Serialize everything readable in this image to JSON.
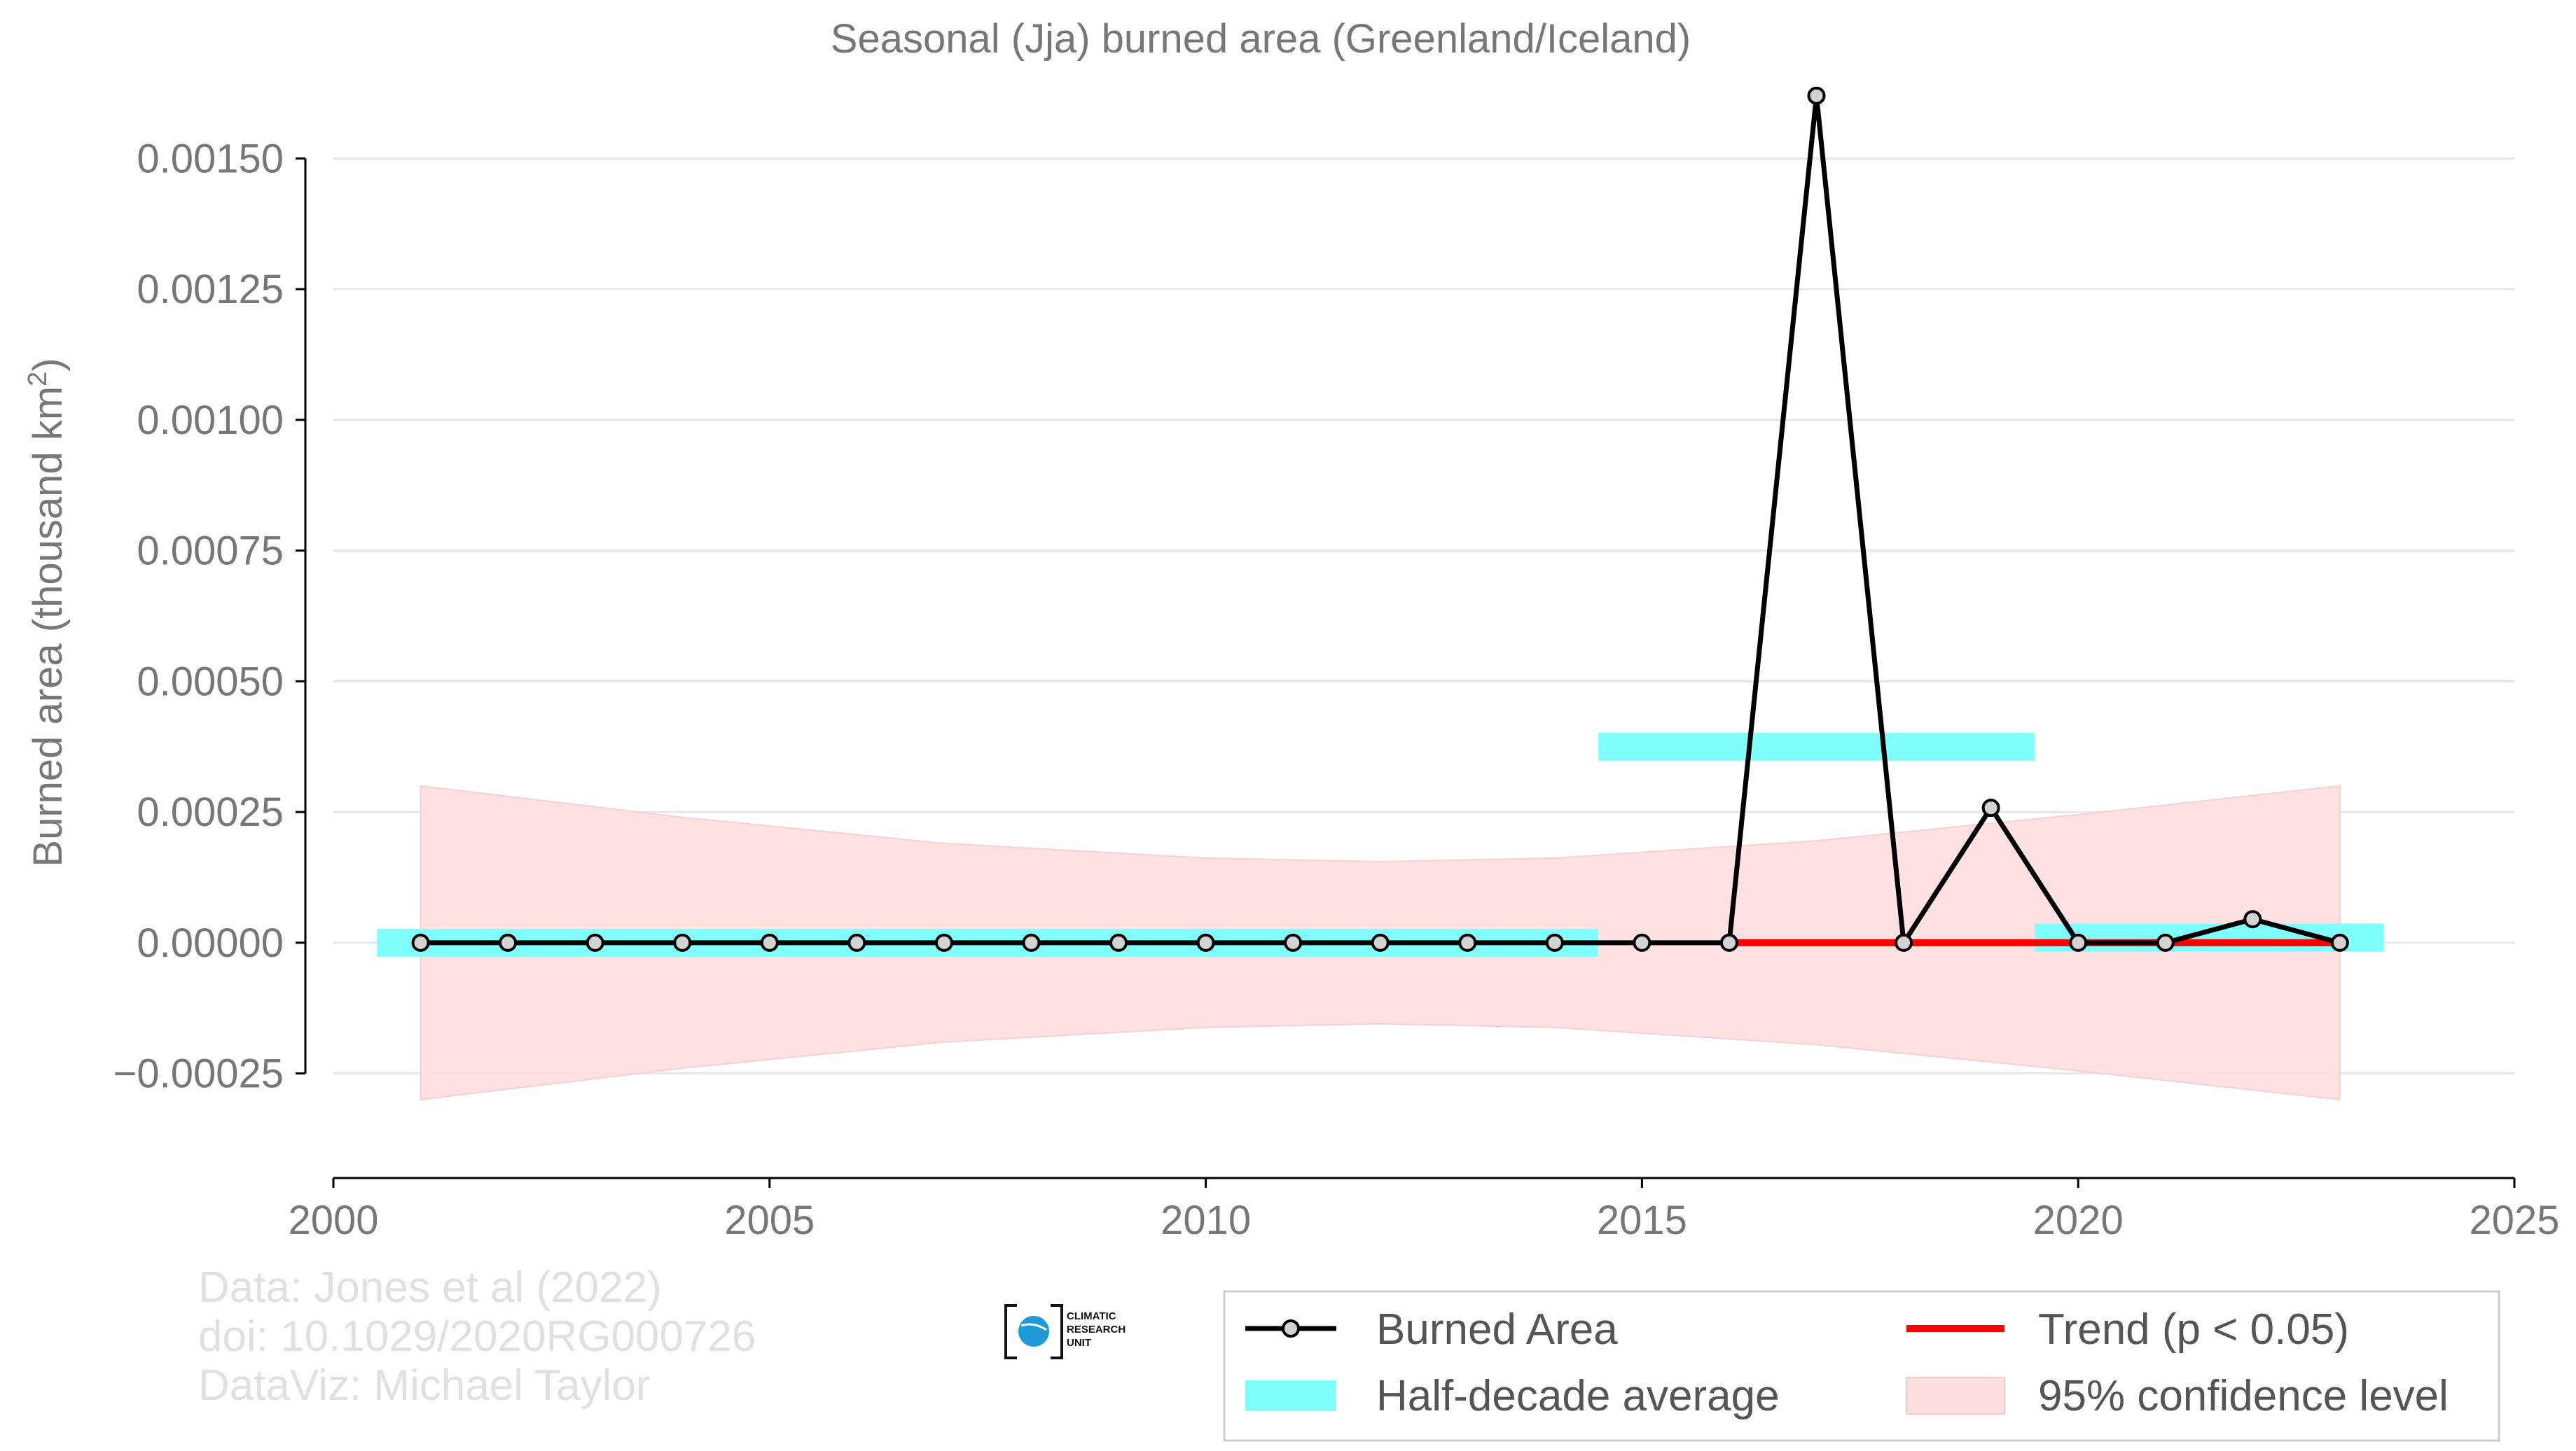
{
  "chart_data": {
    "type": "line",
    "title": "Seasonal (Jja) burned area (Greenland/Iceland)",
    "ylabel_main": "Burned area (thousand km",
    "ylabel_sup": "2",
    "ylabel_end": ")",
    "xlabel": "",
    "xlim": [
      2000,
      2025
    ],
    "ylim": [
      -0.00045,
      0.00172
    ],
    "xticks": [
      2000,
      2005,
      2010,
      2015,
      2020,
      2025
    ],
    "xtick_labels": [
      "2000",
      "2005",
      "2010",
      "2015",
      "2020",
      "2025"
    ],
    "yticks": [
      -0.00025,
      0,
      0.00025,
      0.0005,
      0.00075,
      0.001,
      0.00125,
      0.0015
    ],
    "ytick_labels": [
      "−0.00025",
      "0.00000",
      "0.00025",
      "0.00050",
      "0.00075",
      "0.00100",
      "0.00125",
      "0.00150"
    ],
    "grid": true,
    "series": [
      {
        "name": "Burned Area",
        "color": "#000000",
        "marker_fill": "#d3d3d3",
        "x": [
          2001,
          2002,
          2003,
          2004,
          2005,
          2006,
          2007,
          2008,
          2009,
          2010,
          2011,
          2012,
          2013,
          2014,
          2015,
          2016,
          2017,
          2018,
          2019,
          2020,
          2021,
          2022,
          2023
        ],
        "y": [
          0,
          0,
          0,
          0,
          0,
          0,
          0,
          0,
          0,
          0,
          0,
          0,
          0,
          0,
          0,
          0,
          0.00162,
          0,
          0.000258,
          0,
          0,
          4.5e-05,
          0
        ]
      }
    ],
    "half_decade_average": {
      "name": "Half-decade average",
      "color": "#80ffff",
      "segments": [
        {
          "x0": 2000.5,
          "x1": 2014.5,
          "y": 0
        },
        {
          "x0": 2014.5,
          "x1": 2019.5,
          "y": 0.000375
        },
        {
          "x0": 2019.5,
          "x1": 2023.5,
          "y": 1e-05
        }
      ]
    },
    "trend": {
      "name": "Trend (p < 0.05)",
      "color": "#ff0000",
      "x0": 2016,
      "x1": 2023,
      "y": 0
    },
    "confidence": {
      "name": "95% confidence level",
      "color": "#ffe0e0",
      "x": [
        2001,
        2004,
        2007,
        2010,
        2012,
        2014,
        2017,
        2020,
        2023
      ],
      "upper": [
        0.0003,
        0.00024,
        0.00019,
        0.000162,
        0.000155,
        0.000162,
        0.000195,
        0.000245,
        0.0003
      ],
      "lower": [
        -0.0003,
        -0.00024,
        -0.00019,
        -0.000162,
        -0.000155,
        -0.000162,
        -0.000195,
        -0.000245,
        -0.0003
      ]
    },
    "legend": {
      "placement": "bottom-right",
      "entries": [
        "Burned Area",
        "Trend (p < 0.05)",
        "Half-decade average",
        "95% confidence level"
      ]
    }
  },
  "credits": {
    "line1": "Data: Jones et al (2022)",
    "line2": "doi: 10.1029/2020RG000726",
    "line3": "DataViz: Michael Taylor"
  },
  "logo": {
    "line1": "CLIMATIC",
    "line2": "RESEARCH",
    "line3": "UNIT"
  },
  "colors": {
    "axis": "#000000",
    "grid": "#e6e6e6",
    "text": "#777777"
  }
}
